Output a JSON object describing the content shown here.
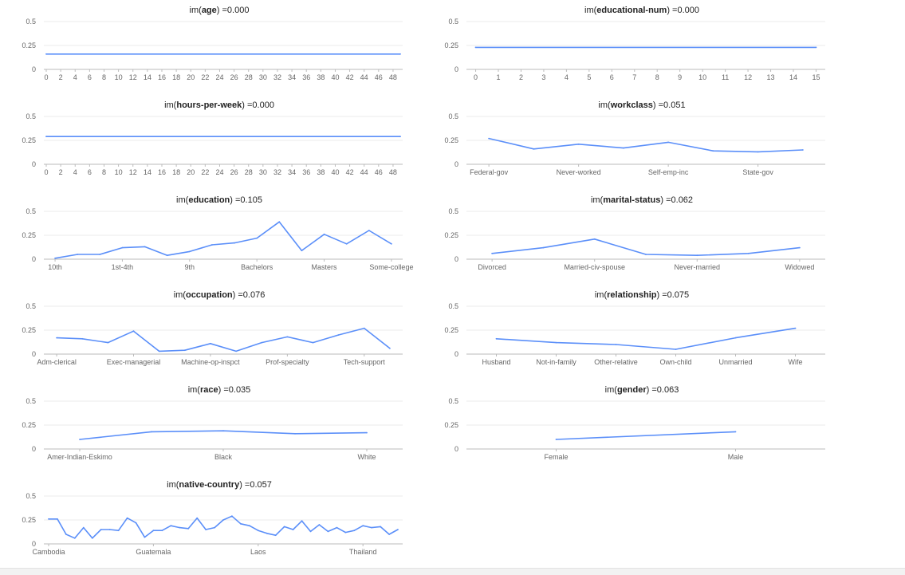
{
  "chart_data": [
    {
      "type": "line",
      "title_prefix": "im(",
      "title_var": "age",
      "title_suffix": ") =0.000",
      "x_kind": "numeric",
      "x_ticks": [
        0,
        2,
        4,
        6,
        8,
        10,
        12,
        14,
        16,
        18,
        20,
        22,
        24,
        26,
        28,
        30,
        32,
        34,
        36,
        38,
        40,
        42,
        44,
        46,
        48
      ],
      "x_domain": [
        0,
        49
      ],
      "ylim": [
        0,
        0.5
      ],
      "y_ticks": [
        "0",
        "0.25",
        "0.5"
      ],
      "series": [
        {
          "x": [
            0,
            49
          ],
          "values": [
            0.16,
            0.16
          ]
        }
      ],
      "color": "#5b8ff9"
    },
    {
      "type": "line",
      "title_prefix": "im(",
      "title_var": "educational-num",
      "title_suffix": ") =0.000",
      "x_kind": "numeric",
      "x_ticks": [
        0,
        1,
        2,
        3,
        4,
        5,
        6,
        7,
        8,
        9,
        10,
        11,
        12,
        13,
        14,
        15
      ],
      "x_domain": [
        -0.3,
        15.3
      ],
      "ylim": [
        0,
        0.5
      ],
      "y_ticks": [
        "0",
        "0.25",
        "0.5"
      ],
      "series": [
        {
          "x": [
            0,
            15
          ],
          "values": [
            0.23,
            0.23
          ]
        }
      ],
      "color": "#5b8ff9"
    },
    {
      "type": "line",
      "title_prefix": "im(",
      "title_var": "hours-per-week",
      "title_suffix": ") =0.000",
      "x_kind": "numeric",
      "x_ticks": [
        0,
        2,
        4,
        6,
        8,
        10,
        12,
        14,
        16,
        18,
        20,
        22,
        24,
        26,
        28,
        30,
        32,
        34,
        36,
        38,
        40,
        42,
        44,
        46,
        48
      ],
      "x_domain": [
        0,
        49
      ],
      "ylim": [
        0,
        0.5
      ],
      "y_ticks": [
        "0",
        "0.25",
        "0.5"
      ],
      "series": [
        {
          "x": [
            0,
            49
          ],
          "values": [
            0.29,
            0.29
          ]
        }
      ],
      "color": "#5b8ff9"
    },
    {
      "type": "line",
      "title_prefix": "im(",
      "title_var": "workclass",
      "title_suffix": ") =0.051",
      "x_kind": "category",
      "n": 8,
      "tick_labels": [
        "Federal-gov",
        "Never-worked",
        "Self-emp-inc",
        "State-gov"
      ],
      "tick_at": [
        0,
        2,
        4,
        6
      ],
      "ylim": [
        0,
        0.5
      ],
      "y_ticks": [
        "0",
        "0.25",
        "0.5"
      ],
      "series": [
        {
          "values": [
            0.27,
            0.16,
            0.21,
            0.17,
            0.23,
            0.14,
            0.13,
            0.15
          ]
        }
      ],
      "color": "#5b8ff9"
    },
    {
      "type": "line",
      "title_prefix": "im(",
      "title_var": "education",
      "title_suffix": ") =0.105",
      "x_kind": "category",
      "n": 16,
      "tick_labels": [
        "10th",
        "1st-4th",
        "9th",
        "Bachelors",
        "Masters",
        "Some-college"
      ],
      "tick_at": [
        0,
        3,
        6,
        9,
        12,
        15
      ],
      "ylim": [
        0,
        0.5
      ],
      "y_ticks": [
        "0",
        "0.25",
        "0.5"
      ],
      "series": [
        {
          "values": [
            0.01,
            0.05,
            0.05,
            0.12,
            0.13,
            0.04,
            0.08,
            0.15,
            0.17,
            0.22,
            0.39,
            0.09,
            0.26,
            0.16,
            0.3,
            0.16
          ]
        }
      ],
      "color": "#5b8ff9"
    },
    {
      "type": "line",
      "title_prefix": "im(",
      "title_var": "marital-status",
      "title_suffix": ") =0.062",
      "x_kind": "category",
      "n": 7,
      "tick_labels": [
        "Divorced",
        "Married-civ-spouse",
        "Never-married",
        "Widowed"
      ],
      "tick_at": [
        0,
        2,
        4,
        6
      ],
      "ylim": [
        0,
        0.5
      ],
      "y_ticks": [
        "0",
        "0.25",
        "0.5"
      ],
      "series": [
        {
          "values": [
            0.06,
            0.12,
            0.21,
            0.05,
            0.04,
            0.06,
            0.12
          ]
        }
      ],
      "color": "#5b8ff9"
    },
    {
      "type": "line",
      "title_prefix": "im(",
      "title_var": "occupation",
      "title_suffix": ") =0.076",
      "x_kind": "category",
      "n": 14,
      "tick_labels": [
        "Adm-clerical",
        "Exec-managerial",
        "Machine-op-inspct",
        "Prof-specialty",
        "Tech-support"
      ],
      "tick_at": [
        0,
        3,
        6,
        9,
        12
      ],
      "ylim": [
        0,
        0.5
      ],
      "y_ticks": [
        "0",
        "0.25",
        "0.5"
      ],
      "series": [
        {
          "values": [
            0.17,
            0.16,
            0.12,
            0.24,
            0.03,
            0.04,
            0.11,
            0.03,
            0.12,
            0.18,
            0.12,
            0.2,
            0.27,
            0.06
          ]
        }
      ],
      "color": "#5b8ff9"
    },
    {
      "type": "line",
      "title_prefix": "im(",
      "title_var": "relationship",
      "title_suffix": ") =0.075",
      "x_kind": "category",
      "n": 6,
      "tick_labels": [
        "Husband",
        "Not-in-family",
        "Other-relative",
        "Own-child",
        "Unmarried",
        "Wife"
      ],
      "tick_at": [
        0,
        1,
        2,
        3,
        4,
        5
      ],
      "ylim": [
        0,
        0.5
      ],
      "y_ticks": [
        "0",
        "0.25",
        "0.5"
      ],
      "series": [
        {
          "values": [
            0.16,
            0.12,
            0.1,
            0.05,
            0.17,
            0.27
          ]
        }
      ],
      "color": "#5b8ff9"
    },
    {
      "type": "line",
      "title_prefix": "im(",
      "title_var": "race",
      "title_suffix": ") =0.035",
      "x_kind": "category",
      "n": 5,
      "tick_labels": [
        "Amer-Indian-Eskimo",
        "Black",
        "White"
      ],
      "tick_at": [
        0,
        2,
        4
      ],
      "ylim": [
        0,
        0.5
      ],
      "y_ticks": [
        "0",
        "0.25",
        "0.5"
      ],
      "series": [
        {
          "values": [
            0.1,
            0.18,
            0.19,
            0.16,
            0.17
          ]
        }
      ],
      "color": "#5b8ff9"
    },
    {
      "type": "line",
      "title_prefix": "im(",
      "title_var": "gender",
      "title_suffix": ") =0.063",
      "x_kind": "category",
      "n": 2,
      "tick_labels": [
        "Female",
        "Male"
      ],
      "tick_at": [
        0,
        1
      ],
      "ylim": [
        0,
        0.5
      ],
      "y_ticks": [
        "0",
        "0.25",
        "0.5"
      ],
      "series": [
        {
          "values": [
            0.1,
            0.18
          ]
        }
      ],
      "color": "#5b8ff9"
    },
    {
      "type": "line",
      "title_prefix": "im(",
      "title_var": "native-country",
      "title_suffix": ") =0.057",
      "x_kind": "category",
      "n": 41,
      "tick_labels": [
        "Cambodia",
        "Guatemala",
        "Laos",
        "Thailand"
      ],
      "tick_at": [
        0,
        12,
        24,
        36
      ],
      "ylim": [
        0,
        0.5
      ],
      "y_ticks": [
        "0",
        "0.25",
        "0.5"
      ],
      "series": [
        {
          "values": [
            0.26,
            0.26,
            0.1,
            0.06,
            0.17,
            0.06,
            0.15,
            0.15,
            0.14,
            0.27,
            0.22,
            0.07,
            0.14,
            0.14,
            0.19,
            0.17,
            0.16,
            0.27,
            0.15,
            0.17,
            0.25,
            0.29,
            0.21,
            0.19,
            0.14,
            0.11,
            0.09,
            0.18,
            0.15,
            0.24,
            0.13,
            0.2,
            0.13,
            0.17,
            0.12,
            0.14,
            0.19,
            0.17,
            0.18,
            0.1,
            0.15
          ]
        }
      ],
      "color": "#5b8ff9"
    }
  ]
}
